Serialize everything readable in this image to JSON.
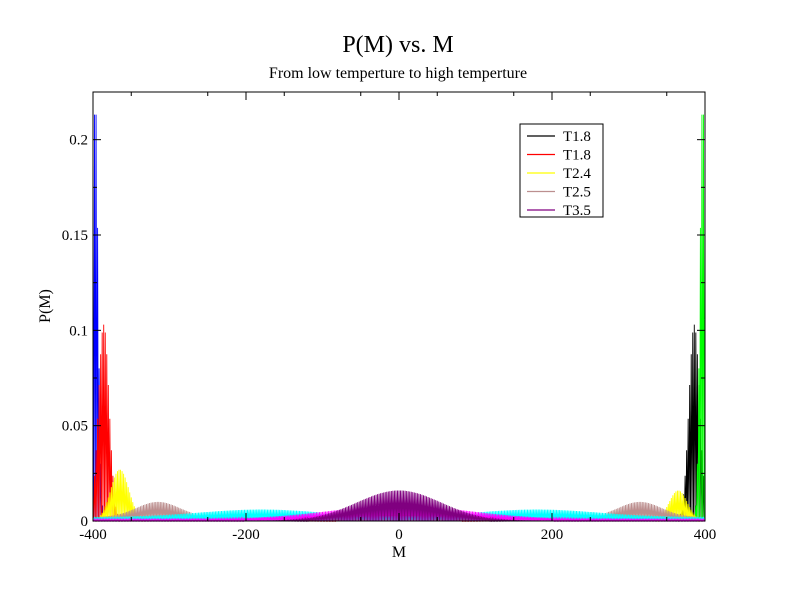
{
  "chart_data": {
    "type": "line",
    "title": "P(M) vs. M",
    "subtitle": "From low temperture to high temperture",
    "xlabel": "M",
    "ylabel": "P(M)",
    "xlim": [
      -400,
      400
    ],
    "ylim": [
      0,
      0.225
    ],
    "xticks": [
      {
        "value": -400,
        "label": "-400"
      },
      {
        "value": -200,
        "label": "-200"
      },
      {
        "value": 0,
        "label": "0"
      },
      {
        "value": 200,
        "label": "200"
      },
      {
        "value": 400,
        "label": "400"
      }
    ],
    "yticks": [
      {
        "value": 0,
        "label": "0"
      },
      {
        "value": 0.05,
        "label": "0.05"
      },
      {
        "value": 0.1,
        "label": "0.1"
      },
      {
        "value": 0.15,
        "label": "0.15"
      },
      {
        "value": 0.2,
        "label": "0.2"
      }
    ],
    "grid": false,
    "legend_position": "top-right",
    "legend": [
      {
        "name": "T1.8",
        "color": "#000000"
      },
      {
        "name": "T1.8",
        "color": "#ff0000"
      },
      {
        "name": "T2.4",
        "color": "#ffff00"
      },
      {
        "name": "T2.5",
        "color": "#bc8f8f"
      },
      {
        "name": "T3.5",
        "color": "#800080"
      }
    ],
    "series": [
      {
        "color": "#0000ff",
        "peaks": [
          {
            "center": -397,
            "peak": 0.222,
            "width": 3.5
          }
        ],
        "baseline": 0
      },
      {
        "color": "#000000",
        "peaks": [
          {
            "center": 386,
            "peak": 0.103,
            "width": 7
          }
        ],
        "baseline": 0
      },
      {
        "color": "#ff0000",
        "peaks": [
          {
            "center": -386,
            "peak": 0.103,
            "width": 7
          },
          {
            "center": 0,
            "peak": 0.004,
            "width": 60
          }
        ],
        "baseline": 0
      },
      {
        "color": "#00ff00",
        "peaks": [
          {
            "center": 397,
            "peak": 0.222,
            "width": 3.5
          }
        ],
        "baseline": 0
      },
      {
        "color": "#ffff00",
        "peaks": [
          {
            "center": -365,
            "peak": 0.027,
            "width": 12
          },
          {
            "center": 365,
            "peak": 0.016,
            "width": 12
          }
        ],
        "baseline": 0
      },
      {
        "color": "#bc8f8f",
        "peaks": [
          {
            "center": -315,
            "peak": 0.008,
            "width": 28
          },
          {
            "center": 315,
            "peak": 0.008,
            "width": 28
          }
        ],
        "baseline": 0.002
      },
      {
        "color": "#00ffff",
        "peaks": [
          {
            "center": -180,
            "peak": 0.004,
            "width": 80
          },
          {
            "center": 180,
            "peak": 0.004,
            "width": 80
          }
        ],
        "baseline": 0.002
      },
      {
        "color": "#ff00ff",
        "peaks": [
          {
            "center": 0,
            "peak": 0.007,
            "width": 90
          }
        ],
        "baseline": 0.001
      },
      {
        "color": "#800080",
        "peaks": [
          {
            "center": 0,
            "peak": 0.016,
            "width": 55
          }
        ],
        "baseline": 0
      }
    ]
  }
}
